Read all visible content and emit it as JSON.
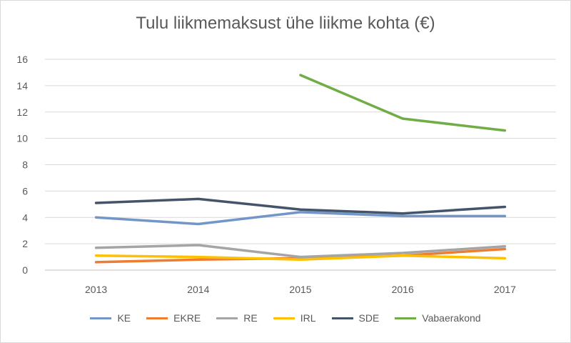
{
  "chart_data": {
    "type": "line",
    "title": "Tulu liikmemaksust ühe liikme kohta (€)",
    "categories": [
      "2013",
      "2014",
      "2015",
      "2016",
      "2017"
    ],
    "ylim": [
      0,
      16
    ],
    "yticks": [
      "0",
      "2",
      "4",
      "6",
      "8",
      "10",
      "12",
      "14",
      "16"
    ],
    "grid": true,
    "legend_position": "bottom",
    "series": [
      {
        "name": "KE",
        "color": "#7396c9",
        "values": [
          4.0,
          3.5,
          4.4,
          4.1,
          4.1
        ]
      },
      {
        "name": "EKRE",
        "color": "#ed7d31",
        "values": [
          0.6,
          0.8,
          0.9,
          1.1,
          1.6
        ]
      },
      {
        "name": "RE",
        "color": "#a5a5a5",
        "values": [
          1.7,
          1.9,
          1.0,
          1.3,
          1.8
        ]
      },
      {
        "name": "IRL",
        "color": "#ffc000",
        "values": [
          1.1,
          1.0,
          0.8,
          1.1,
          0.9
        ]
      },
      {
        "name": "SDE",
        "color": "#44546a",
        "values": [
          5.1,
          5.4,
          4.6,
          4.3,
          4.8
        ]
      },
      {
        "name": "Vabaerakond",
        "color": "#70ad47",
        "values": [
          null,
          null,
          14.8,
          11.5,
          10.6
        ]
      }
    ]
  }
}
